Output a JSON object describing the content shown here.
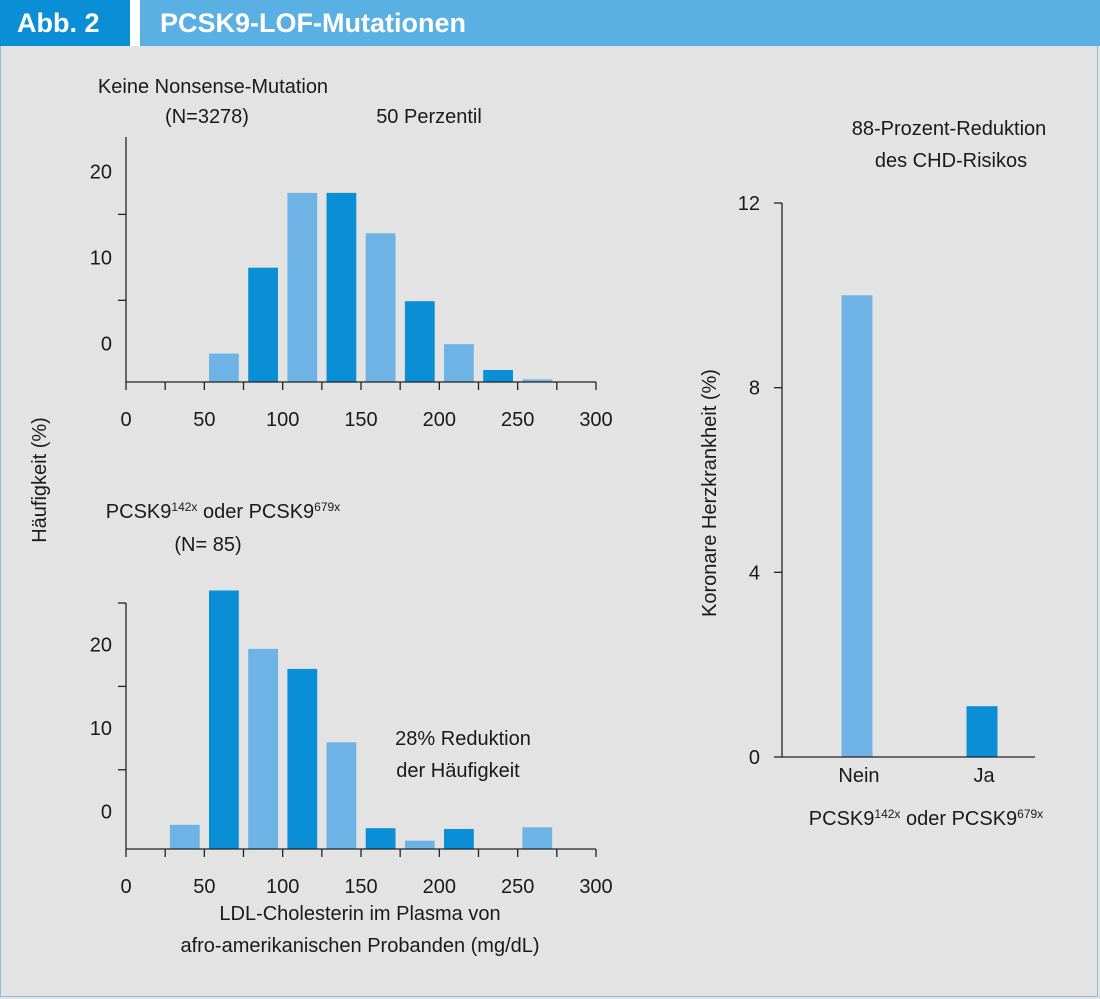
{
  "header": {
    "figure_label": "Abb. 2",
    "title": "PCSK9-LOF-Mutationen"
  },
  "colors": {
    "dark_blue": "#0a8fd6",
    "light_blue": "#6db3e6",
    "background": "#e3e3e3"
  },
  "shared_ylabel": "Häufigkeit (%)",
  "chart_data": [
    {
      "id": "top",
      "type": "bar",
      "title": "Keine Nonsense-Mutation",
      "subtitle": "(N=3278)",
      "annotation": "50 Perzentil",
      "x_ticks": [
        0,
        50,
        100,
        150,
        200,
        250,
        300
      ],
      "y_ticks": [
        0,
        10,
        20
      ],
      "xlim": [
        0,
        300
      ],
      "ylim": [
        -4.5,
        24
      ],
      "bars": [
        {
          "x": 62.5,
          "value": -1.2,
          "color": "light"
        },
        {
          "x": 87.5,
          "value": 8.8,
          "color": "dark"
        },
        {
          "x": 112.5,
          "value": 17.5,
          "color": "light"
        },
        {
          "x": 137.5,
          "value": 17.5,
          "color": "dark"
        },
        {
          "x": 162.5,
          "value": 12.8,
          "color": "light"
        },
        {
          "x": 187.5,
          "value": 4.9,
          "color": "dark"
        },
        {
          "x": 212.5,
          "value": -0.1,
          "color": "light"
        },
        {
          "x": 237.5,
          "value": -3.1,
          "color": "dark"
        },
        {
          "x": 262.5,
          "value": -4.2,
          "color": "light"
        }
      ]
    },
    {
      "id": "bottom",
      "type": "bar",
      "title_main": "PCSK9",
      "title_sup1": "142x",
      "title_mid": " oder PCSK9",
      "title_sup2": "679x",
      "subtitle": "(N= 85)",
      "annotation_line1": "28% Reduktion",
      "annotation_line2": "der Häufigkeit",
      "xlabel_line1": "LDL-Cholesterin im Plasma von",
      "xlabel_line2": "afro-amerikanischen Probanden (mg/dL)",
      "x_ticks": [
        0,
        50,
        100,
        150,
        200,
        250,
        300
      ],
      "y_ticks": [
        0,
        10,
        20
      ],
      "xlim": [
        0,
        300
      ],
      "ylim": [
        -4.5,
        25
      ],
      "bars": [
        {
          "x": 37.5,
          "value": -1.6,
          "color": "light"
        },
        {
          "x": 62.5,
          "value": 26.5,
          "color": "dark"
        },
        {
          "x": 87.5,
          "value": 19.5,
          "color": "light"
        },
        {
          "x": 112.5,
          "value": 17.1,
          "color": "dark"
        },
        {
          "x": 137.5,
          "value": 8.3,
          "color": "light"
        },
        {
          "x": 162.5,
          "value": -2.0,
          "color": "dark"
        },
        {
          "x": 187.5,
          "value": -3.5,
          "color": "light"
        },
        {
          "x": 212.5,
          "value": -2.1,
          "color": "dark"
        },
        {
          "x": 262.5,
          "value": -1.9,
          "color": "light"
        }
      ]
    },
    {
      "id": "right",
      "type": "bar",
      "title_line1": "88-Prozent-Reduktion",
      "title_line2": "des CHD-Risikos",
      "ylabel": "Koronare Herzkrankheit (%)",
      "xlabel_main": "PCSK9",
      "xlabel_sup1": "142x",
      "xlabel_mid": " oder PCSK9",
      "xlabel_sup2": "679x",
      "categories": [
        "Nein",
        "Ja"
      ],
      "values": [
        10.0,
        1.1
      ],
      "bar_colors": [
        "light",
        "dark"
      ],
      "y_ticks": [
        0,
        4,
        8,
        12
      ],
      "ylim": [
        0,
        12
      ]
    }
  ]
}
